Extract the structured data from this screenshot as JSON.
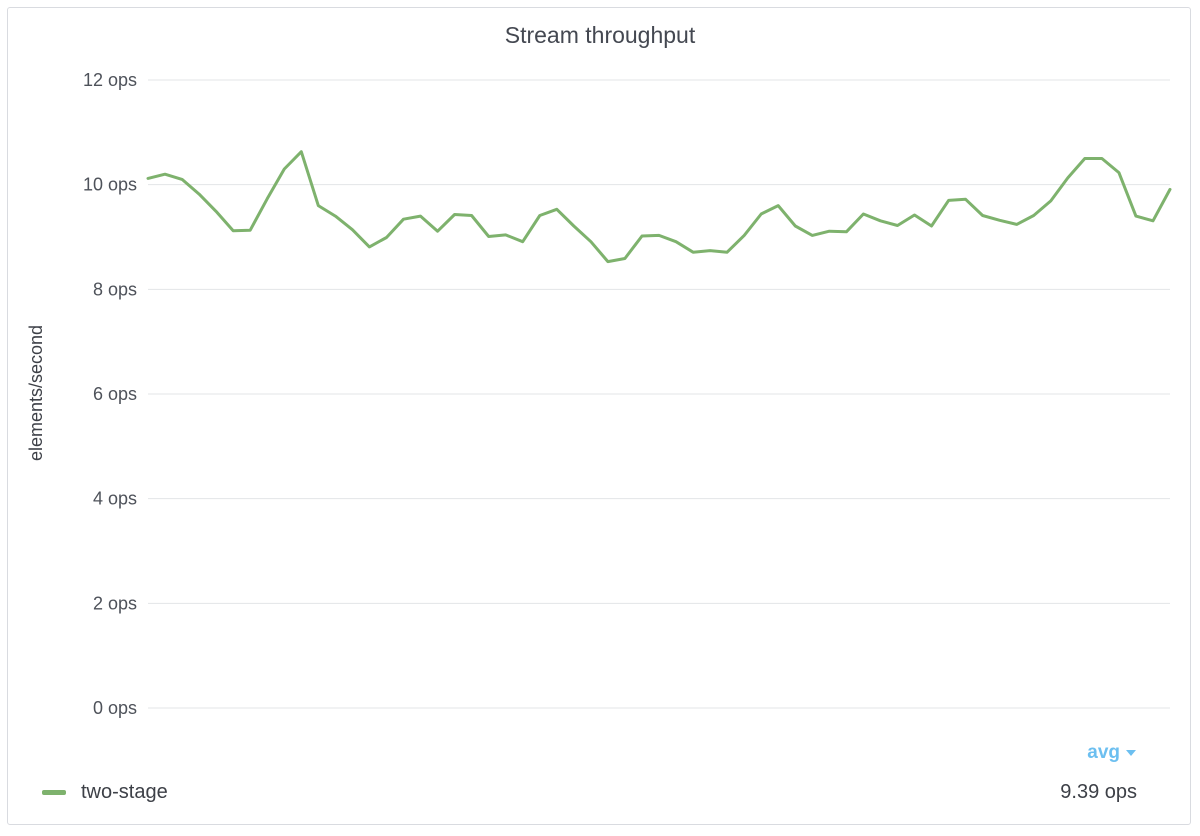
{
  "panel": {
    "title": "Stream throughput"
  },
  "legend": {
    "stat_label": "avg",
    "stat_icon": "caret-down-icon",
    "series_name": "two-stage",
    "series_value": "9.39 ops"
  },
  "colors": {
    "series": "#7eb26d",
    "accent": "#6cbff0",
    "grid": "#e3e4e7",
    "text": "#4e525a"
  },
  "chart_data": {
    "type": "line",
    "title": "Stream throughput",
    "ylabel": "elements/second",
    "xlabel": "",
    "ylim": [
      0,
      12
    ],
    "yticks": [
      0,
      2,
      4,
      6,
      8,
      10,
      12
    ],
    "ytick_labels": [
      "0 ops",
      "2 ops",
      "4 ops",
      "6 ops",
      "8 ops",
      "10 ops",
      "12 ops"
    ],
    "grid": true,
    "legend_position": "bottom",
    "series": [
      {
        "name": "two-stage",
        "color": "#7eb26d",
        "values": [
          10.12,
          10.2,
          10.1,
          9.82,
          9.49,
          9.12,
          9.13,
          9.73,
          10.3,
          10.63,
          9.6,
          9.4,
          9.14,
          8.81,
          8.99,
          9.34,
          9.4,
          9.11,
          9.43,
          9.41,
          9.01,
          9.04,
          8.91,
          9.41,
          9.53,
          9.21,
          8.91,
          8.53,
          8.59,
          9.02,
          9.03,
          8.91,
          8.71,
          8.74,
          8.71,
          9.03,
          9.44,
          9.6,
          9.21,
          9.03,
          9.11,
          9.1,
          9.44,
          9.31,
          9.22,
          9.42,
          9.21,
          9.7,
          9.72,
          9.41,
          9.32,
          9.24,
          9.41,
          9.69,
          10.13,
          10.5,
          10.5,
          10.23,
          9.4,
          9.31,
          9.91
        ]
      }
    ]
  }
}
